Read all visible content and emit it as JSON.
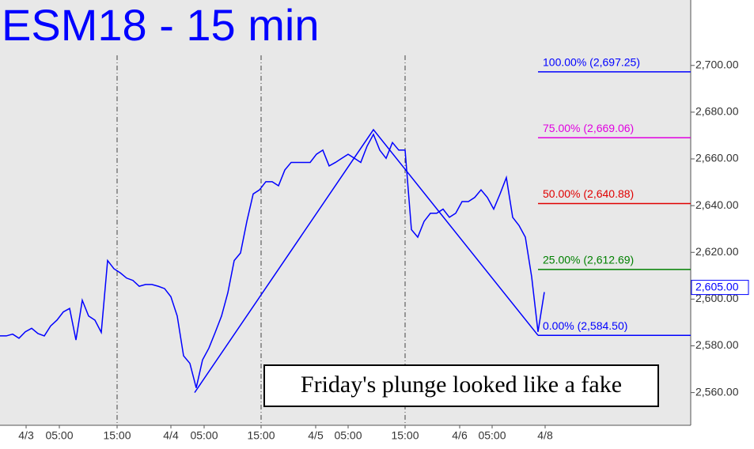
{
  "chart_data": {
    "type": "line",
    "title": "ESM18 - 15 min",
    "series": [
      {
        "color": "#0000ff",
        "values": [
          2584.25,
          2584.25,
          2585,
          2583.25,
          2586,
          2587.5,
          2585.25,
          2584.25,
          2588.5,
          2591,
          2594.5,
          2596,
          2582.5,
          2599.5,
          2592.75,
          2591,
          2585.75,
          2616.5,
          2613,
          2611.25,
          2609,
          2608,
          2605.5,
          2606.25,
          2606.25,
          2605.5,
          2604.5,
          2601,
          2592.75,
          2575.75,
          2572.5,
          2562,
          2574,
          2579,
          2585.75,
          2592.75,
          2602.75,
          2616.5,
          2619.75,
          2633.25,
          2645,
          2646.75,
          2650.25,
          2650.25,
          2648.5,
          2655.25,
          2658.5,
          2658.5,
          2658.5,
          2658.5,
          2662,
          2663.75,
          2657,
          2658.5,
          2660.25,
          2662,
          2660.25,
          2658.5,
          2665.5,
          2670.5,
          2663.75,
          2660.25,
          2667,
          2663.75,
          2663.75,
          2629.75,
          2626.5,
          2633.25,
          2636.75,
          2636.75,
          2638.5,
          2635,
          2636.75,
          2641.75,
          2641.75,
          2643.5,
          2646.75,
          2643.5,
          2638.5,
          2645,
          2652,
          2635,
          2631.5,
          2626.5,
          2609.5,
          2586,
          2603
        ]
      }
    ],
    "xlim": [
      0,
      109.125
    ],
    "xticks": [
      {
        "value": 4.125,
        "label": "4/3"
      },
      {
        "value": 9.375,
        "label": "05:00"
      },
      {
        "value": 18.5,
        "label": "15:00"
      },
      {
        "value": 27,
        "label": "4/4"
      },
      {
        "value": 32.25,
        "label": "05:00"
      },
      {
        "value": 41.25,
        "label": "15:00"
      },
      {
        "value": 49.875,
        "label": "4/5"
      },
      {
        "value": 55,
        "label": "05:00"
      },
      {
        "value": 64,
        "label": "15:00"
      },
      {
        "value": 72.625,
        "label": "4/6"
      },
      {
        "value": 77.75,
        "label": "05:00"
      },
      {
        "value": 86.125,
        "label": "4/8"
      }
    ],
    "session_lines": [
      18.5,
      41.25,
      64
    ],
    "ylim": [
      2546,
      2728
    ],
    "yticks": [
      {
        "value": 2560,
        "label": "2,560.00"
      },
      {
        "value": 2580,
        "label": "2,580.00"
      },
      {
        "value": 2600,
        "label": "2,600.00"
      },
      {
        "value": 2620,
        "label": "2,620.00"
      },
      {
        "value": 2640,
        "label": "2,640.00"
      },
      {
        "value": 2660,
        "label": "2,660.00"
      },
      {
        "value": 2680,
        "label": "2,680.00"
      },
      {
        "value": 2700,
        "label": "2,700.00"
      }
    ],
    "zigzag": {
      "color": "#0000ff",
      "x": [
        30.75,
        59,
        85
      ],
      "values": [
        2560,
        2672.5,
        2584.5
      ]
    },
    "levels": [
      {
        "label": "100.00% (2,697.25)",
        "value": 2697.25,
        "color": "#0000ff"
      },
      {
        "label": "75.00% (2,669.06)",
        "value": 2669.06,
        "color": "#e000e0"
      },
      {
        "label": "50.00% (2,640.88)",
        "value": 2640.88,
        "color": "#e00000"
      },
      {
        "label": "25.00% (2,612.69)",
        "value": 2612.69,
        "color": "#008000"
      },
      {
        "label": "0.00% (2,584.50)",
        "value": 2584.5,
        "color": "#0000ff"
      }
    ],
    "last_price": {
      "value": 2605,
      "label": "2,605.00"
    },
    "annotation": "Friday's plunge looked like a fake"
  }
}
